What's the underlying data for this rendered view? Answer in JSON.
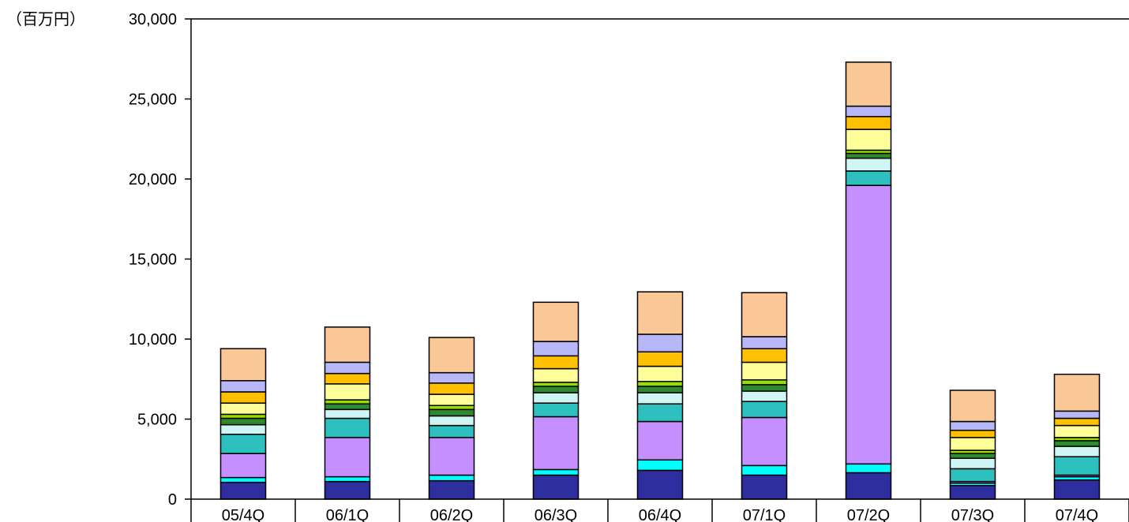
{
  "chart_data": {
    "type": "bar",
    "stacked": true,
    "unit_label": "（百万円）",
    "title": "",
    "xlabel": "",
    "ylabel": "",
    "ylim": [
      0,
      30000
    ],
    "yticks": [
      0,
      5000,
      10000,
      15000,
      20000,
      25000,
      30000
    ],
    "ytick_labels": [
      "0",
      "5,000",
      "10,000",
      "15,000",
      "20,000",
      "25,000",
      "30,000"
    ],
    "grid": false,
    "legend": "none",
    "categories": [
      "05/4Q",
      "06/1Q",
      "06/2Q",
      "06/3Q",
      "06/4Q",
      "07/1Q",
      "07/2Q",
      "07/3Q",
      "07/4Q"
    ],
    "series": [
      {
        "color": "#2E2E9E",
        "values": [
          1050,
          1100,
          1150,
          1500,
          1800,
          1500,
          1650,
          850,
          1200
        ]
      },
      {
        "color": "#00FFFF",
        "values": [
          300,
          300,
          350,
          350,
          650,
          600,
          550,
          150,
          200
        ]
      },
      {
        "color": "#C58FFF",
        "values": [
          1500,
          2450,
          2350,
          3300,
          2400,
          3000,
          17400,
          100,
          100
        ]
      },
      {
        "color": "#2EBFBF",
        "values": [
          1200,
          1200,
          750,
          850,
          1100,
          1000,
          900,
          800,
          1150
        ]
      },
      {
        "color": "#CFF5F5",
        "values": [
          600,
          550,
          600,
          650,
          700,
          650,
          800,
          650,
          650
        ]
      },
      {
        "color": "#2E8A2E",
        "values": [
          400,
          350,
          400,
          400,
          400,
          400,
          300,
          300,
          350
        ]
      },
      {
        "color": "#99DD00",
        "values": [
          250,
          250,
          250,
          250,
          300,
          300,
          200,
          200,
          200
        ]
      },
      {
        "color": "#FFFF99",
        "values": [
          700,
          1000,
          700,
          850,
          950,
          1100,
          1300,
          800,
          750
        ]
      },
      {
        "color": "#FFC000",
        "values": [
          700,
          650,
          700,
          800,
          900,
          850,
          800,
          450,
          450
        ]
      },
      {
        "color": "#B8B8F8",
        "values": [
          700,
          700,
          650,
          900,
          1100,
          750,
          650,
          550,
          450
        ]
      },
      {
        "color": "#F9C896",
        "values": [
          2000,
          2200,
          2200,
          2450,
          2650,
          2750,
          2750,
          1950,
          2300
        ]
      }
    ]
  }
}
